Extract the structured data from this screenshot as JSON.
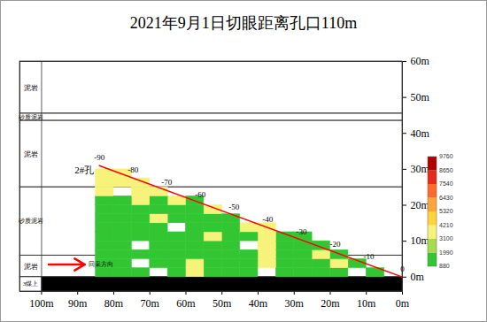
{
  "chart_data": {
    "type": "heatmap",
    "title": "2021年9月1日切眼距离孔口110m",
    "xlim": [
      106,
      0
    ],
    "xticks": [
      {
        "value": 100,
        "label": "100m"
      },
      {
        "value": 90,
        "label": "90m"
      },
      {
        "value": 80,
        "label": "80m"
      },
      {
        "value": 70,
        "label": "70m"
      },
      {
        "value": 60,
        "label": "60m"
      },
      {
        "value": 50,
        "label": "50m"
      },
      {
        "value": 40,
        "label": "40m"
      },
      {
        "value": 30,
        "label": "30m"
      },
      {
        "value": 20,
        "label": "20m"
      },
      {
        "value": 10,
        "label": "10m"
      },
      {
        "value": 0,
        "label": "0m"
      }
    ],
    "ylim": [
      -4,
      60
    ],
    "yticks": [
      {
        "value": 0,
        "label": "0m"
      },
      {
        "value": 10,
        "label": "10m"
      },
      {
        "value": 20,
        "label": "20m"
      },
      {
        "value": 30,
        "label": "30m"
      },
      {
        "value": 40,
        "label": "40m"
      },
      {
        "value": 50,
        "label": "50m"
      },
      {
        "value": 60,
        "label": "60m"
      }
    ],
    "strata": [
      {
        "name": "泥岩",
        "top": 60,
        "bottom": 45.5,
        "color": "#ffffff"
      },
      {
        "name": "砂质泥岩",
        "top": 45.5,
        "bottom": 43.5,
        "color": "#ffffff"
      },
      {
        "name": "泥岩",
        "top": 43.5,
        "bottom": 25,
        "color": "#ffffff"
      },
      {
        "name": "砂质泥岩",
        "top": 25,
        "bottom": 6,
        "color": "#ffffff"
      },
      {
        "name": "泥岩",
        "top": 6,
        "bottom": 0,
        "color": "#ffffff"
      },
      {
        "name": "3煤上",
        "top": 0,
        "bottom": -4,
        "color": "#000000"
      }
    ],
    "cells": {
      "x_edges": [
        0,
        5,
        10,
        15,
        20,
        25,
        30,
        35,
        40,
        45,
        50,
        55,
        60,
        65,
        70,
        75,
        80,
        85
      ],
      "y_edges": [
        0,
        2.5,
        5,
        7.5,
        10,
        12.5,
        15,
        17.5,
        20,
        22.5,
        25,
        27.5,
        30
      ],
      "values": [
        [
          null,
          1500,
          null,
          1600,
          1400,
          1500,
          1700,
          null,
          1500,
          1600,
          1400,
          3600,
          1500,
          null,
          1500,
          1600,
          1500
        ],
        [
          null,
          null,
          1500,
          3400,
          1500,
          1600,
          1500,
          3500,
          1700,
          1500,
          1600,
          3700,
          1500,
          1400,
          null,
          1500,
          1600
        ],
        [
          null,
          null,
          null,
          1500,
          3600,
          1500,
          1400,
          3500,
          1500,
          1600,
          1500,
          1400,
          1500,
          1600,
          1500,
          1400,
          1500
        ],
        [
          null,
          null,
          null,
          null,
          1500,
          1600,
          1500,
          3600,
          null,
          1500,
          1500,
          1600,
          1400,
          1500,
          null,
          1500,
          1600
        ],
        [
          null,
          null,
          null,
          null,
          null,
          1500,
          1500,
          3500,
          1600,
          1500,
          3400,
          1500,
          1500,
          1600,
          1500,
          1500,
          1400
        ],
        [
          null,
          null,
          null,
          null,
          null,
          null,
          null,
          3600,
          3500,
          1500,
          1600,
          1500,
          null,
          1500,
          1600,
          1500,
          1500
        ],
        [
          null,
          null,
          null,
          null,
          null,
          null,
          null,
          null,
          null,
          1500,
          1500,
          1600,
          1500,
          3600,
          1500,
          1500,
          1600
        ],
        [
          null,
          null,
          null,
          null,
          null,
          null,
          null,
          null,
          null,
          null,
          3500,
          1500,
          1600,
          1500,
          1500,
          1600,
          1500
        ],
        [
          null,
          null,
          null,
          null,
          null,
          null,
          null,
          null,
          null,
          null,
          null,
          1500,
          3500,
          1600,
          3600,
          1500,
          1500
        ],
        [
          null,
          null,
          null,
          null,
          null,
          null,
          null,
          null,
          null,
          null,
          null,
          null,
          null,
          3600,
          3700,
          null,
          3500
        ],
        [
          null,
          null,
          null,
          null,
          null,
          null,
          null,
          null,
          null,
          null,
          null,
          null,
          null,
          null,
          3600,
          3500,
          3700
        ],
        [
          null,
          null,
          null,
          null,
          null,
          null,
          null,
          null,
          null,
          null,
          null,
          null,
          null,
          null,
          null,
          3800,
          3600
        ]
      ]
    },
    "colorbar": {
      "lim": [
        880,
        9760
      ],
      "ticks": [
        880,
        1990,
        3100,
        4210,
        5320,
        6430,
        7540,
        8650,
        9760
      ],
      "colors": [
        "#33c633",
        "#a5dc4a",
        "#f7f27a",
        "#ffd43b",
        "#ffa53b",
        "#ff6a2a",
        "#e8281a",
        "#b00000"
      ]
    },
    "borehole": {
      "label": "2#孔",
      "start": [
        84,
        31
      ],
      "end": [
        0,
        0
      ],
      "color": "#ff0000",
      "depth_labels": [
        -90,
        -80,
        -70,
        -60,
        -50,
        -40,
        -30,
        -20,
        -10,
        0
      ]
    },
    "arrow": {
      "text": "回采方向",
      "x1": 98,
      "x2": 88,
      "y": 3.5,
      "color": "#ff0000"
    }
  }
}
